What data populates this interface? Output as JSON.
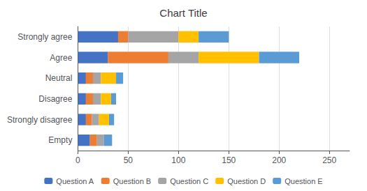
{
  "chart_data": {
    "type": "bar",
    "orientation": "horizontal",
    "stacked": true,
    "title": "Chart Title",
    "categories": [
      "Strongly agree",
      "Agree",
      "Neutral",
      "Disagree",
      "Strongly disagree",
      "Empty"
    ],
    "series": [
      {
        "name": "Question A",
        "color": "#4472C4",
        "values": [
          40,
          30,
          8,
          8,
          8,
          12
        ]
      },
      {
        "name": "Question B",
        "color": "#ED7D31",
        "values": [
          10,
          60,
          7,
          7,
          6,
          7
        ]
      },
      {
        "name": "Question C",
        "color": "#A5A5A5",
        "values": [
          50,
          30,
          8,
          8,
          7,
          7
        ]
      },
      {
        "name": "Question D",
        "color": "#FFC000",
        "values": [
          20,
          60,
          15,
          10,
          10,
          0
        ]
      },
      {
        "name": "Question E",
        "color": "#5B9BD5",
        "values": [
          30,
          40,
          7,
          5,
          5,
          8
        ]
      }
    ],
    "xlim": [
      0,
      270
    ],
    "xticks": [
      0,
      50,
      100,
      150,
      200,
      250
    ],
    "grid": true,
    "legend": "bottom"
  }
}
